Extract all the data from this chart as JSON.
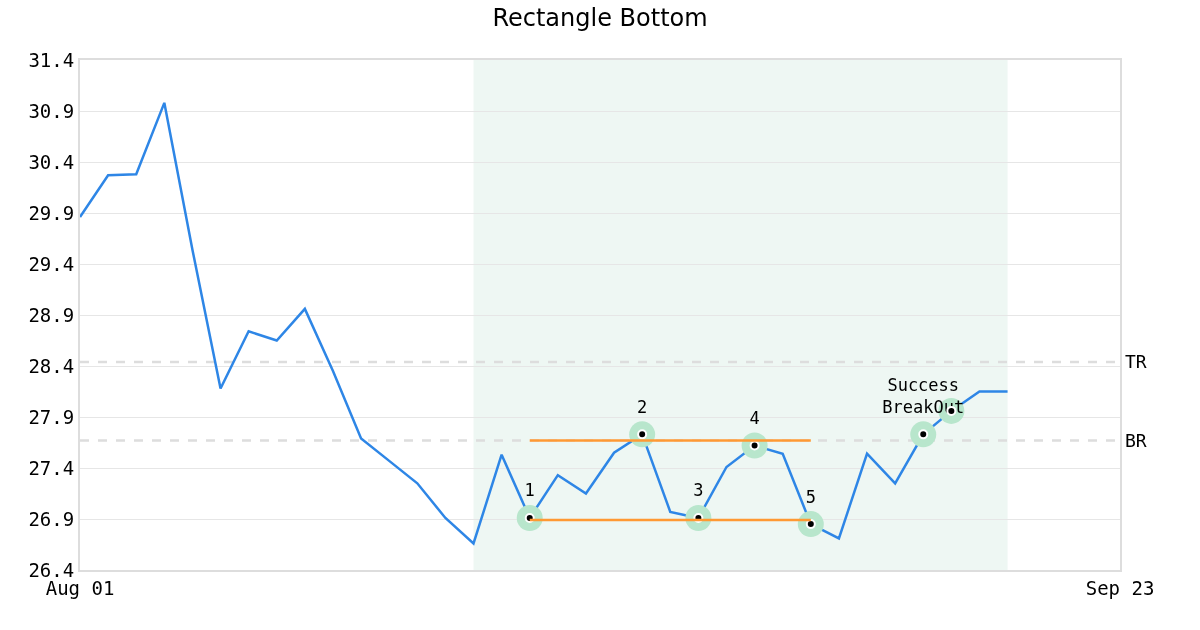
{
  "chart_data": {
    "type": "line",
    "title": "Rectangle Bottom",
    "categories": [
      "Aug 01",
      null,
      null,
      null,
      null,
      null,
      null,
      null,
      null,
      null,
      null,
      null,
      null,
      null,
      null,
      null,
      null,
      null,
      null,
      null,
      null,
      null,
      null,
      null,
      null,
      null,
      null,
      null,
      null,
      null,
      null,
      null,
      null,
      null,
      null,
      null,
      null,
      "Sep 23"
    ],
    "ylim": [
      26.4,
      31.4
    ],
    "yticks": [
      26.4,
      26.9,
      27.4,
      27.9,
      28.4,
      28.9,
      29.4,
      29.9,
      30.4,
      30.9,
      31.4
    ],
    "grid": "y",
    "legend": false,
    "series": [
      {
        "color": "#2e86e6",
        "marker": "none",
        "values": [
          29.86,
          30.27,
          30.28,
          30.98,
          29.54,
          28.18,
          28.74,
          28.65,
          28.96,
          28.35,
          27.69,
          27.47,
          27.25,
          26.91,
          26.66,
          27.53,
          26.91,
          27.33,
          27.15,
          27.55,
          27.73,
          26.97,
          26.91,
          27.41,
          27.62,
          27.54,
          26.85,
          26.71,
          27.54,
          27.25,
          27.73,
          27.96,
          28.15,
          28.15,
          null,
          null,
          null,
          null
        ]
      },
      {
        "color": "#ff9933",
        "marker": "none",
        "values": [
          null,
          null,
          null,
          null,
          null,
          null,
          null,
          null,
          null,
          null,
          null,
          null,
          null,
          null,
          null,
          null,
          27.67,
          27.67,
          27.67,
          27.67,
          27.67,
          27.67,
          27.67,
          27.67,
          27.67,
          27.67,
          27.67,
          null,
          null,
          null,
          null,
          null,
          null,
          null,
          null,
          null,
          null,
          null
        ]
      },
      {
        "color": "#ff9933",
        "marker": "none",
        "values": [
          null,
          null,
          null,
          null,
          null,
          null,
          null,
          null,
          null,
          null,
          null,
          null,
          null,
          null,
          null,
          null,
          26.89,
          26.89,
          26.89,
          26.89,
          26.89,
          26.89,
          26.89,
          26.89,
          26.89,
          26.89,
          26.89,
          null,
          null,
          null,
          null,
          null,
          null,
          null,
          null,
          null,
          null,
          null
        ]
      },
      {
        "type": "scatter",
        "color": "#b8e6cc",
        "marker": "circle",
        "values": [
          null,
          null,
          null,
          null,
          null,
          null,
          null,
          null,
          null,
          null,
          null,
          null,
          null,
          null,
          null,
          null,
          26.91,
          null,
          null,
          null,
          27.73,
          null,
          26.91,
          null,
          27.62,
          null,
          26.85,
          null,
          null,
          null,
          27.73,
          27.96,
          null,
          null,
          null,
          null,
          null,
          null
        ]
      }
    ],
    "ref_lines": [
      {
        "axis": "y",
        "value": 28.44,
        "label": "TR",
        "color": "#dddddd",
        "line_style": "dashed"
      },
      {
        "axis": "y",
        "value": 27.67,
        "label": "BR",
        "color": "#dddddd",
        "line_style": "dashed"
      }
    ],
    "annotations": [
      "1",
      "2",
      "3",
      "4",
      "5",
      "Success\nBreakOut"
    ]
  }
}
